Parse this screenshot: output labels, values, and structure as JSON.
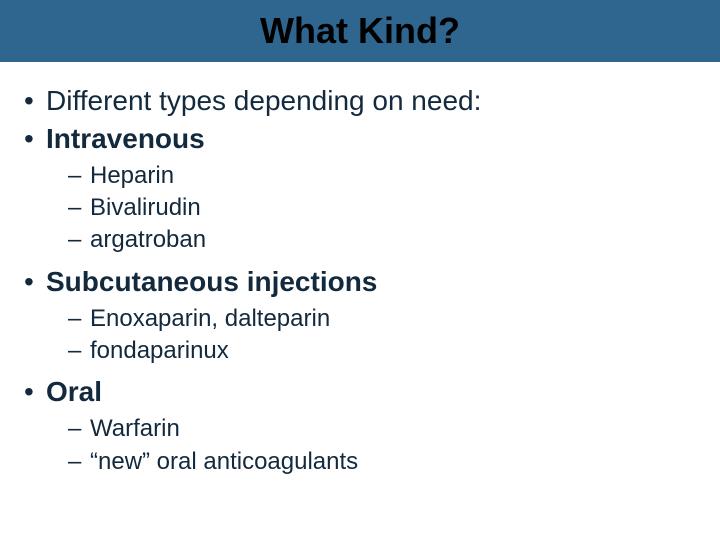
{
  "colors": {
    "title_bar_bg": "#2f6690",
    "title_text": "#000000",
    "body_text": "#13293d",
    "page_bg": "#ffffff"
  },
  "typography": {
    "title_fontsize": 36,
    "level1_fontsize": 28,
    "level2_fontsize": 24,
    "font_family": "Arial"
  },
  "title": "What Kind?",
  "bullets": {
    "b0": "Different types depending on need:",
    "b1": "Intravenous",
    "b1_subs": {
      "s0": "Heparin",
      "s1": "Bivalirudin",
      "s2": "argatroban"
    },
    "b2": "Subcutaneous injections",
    "b2_subs": {
      "s0": "Enoxaparin, dalteparin",
      "s1": "fondaparinux"
    },
    "b3": "Oral",
    "b3_subs": {
      "s0": "Warfarin",
      "s1": "“new” oral anticoagulants"
    }
  }
}
